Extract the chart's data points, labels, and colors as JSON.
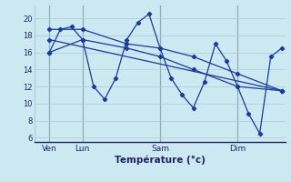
{
  "background_color": "#cce8f0",
  "grid_color": "#aaccd8",
  "line_color": "#1a3a9e",
  "vline_color": "#556680",
  "title": "Température (°c)",
  "ylabel_ticks": [
    6,
    8,
    10,
    12,
    14,
    16,
    18,
    20
  ],
  "ylim": [
    5.5,
    21.5
  ],
  "xlim": [
    -0.3,
    22.3
  ],
  "xtick_labels": [
    "Ven",
    "Lun",
    "Sam",
    "Dim"
  ],
  "xtick_positions": [
    1,
    4,
    11,
    18
  ],
  "vline_positions": [
    1,
    4,
    11,
    18
  ],
  "main_x": [
    1,
    2,
    3,
    4,
    5,
    6,
    7,
    8,
    9,
    10,
    11,
    12,
    13,
    14,
    15,
    16,
    17,
    18,
    19,
    20,
    21,
    22
  ],
  "main_y": [
    16.0,
    18.7,
    19.0,
    17.5,
    12.0,
    10.5,
    13.0,
    17.5,
    19.5,
    20.5,
    16.5,
    13.0,
    11.0,
    9.5,
    12.5,
    17.0,
    15.0,
    12.0,
    8.8,
    6.5,
    15.5,
    16.5
  ],
  "line2_x": [
    1,
    4,
    8,
    11,
    14,
    18,
    22
  ],
  "line2_y": [
    18.7,
    18.7,
    17.0,
    16.5,
    15.5,
    13.5,
    11.5
  ],
  "line3_x": [
    1,
    4,
    8,
    11,
    14,
    18,
    22
  ],
  "line3_y": [
    16.0,
    17.5,
    16.5,
    15.5,
    14.0,
    12.0,
    11.5
  ],
  "line4_x": [
    1,
    22
  ],
  "line4_y": [
    17.5,
    11.5
  ]
}
